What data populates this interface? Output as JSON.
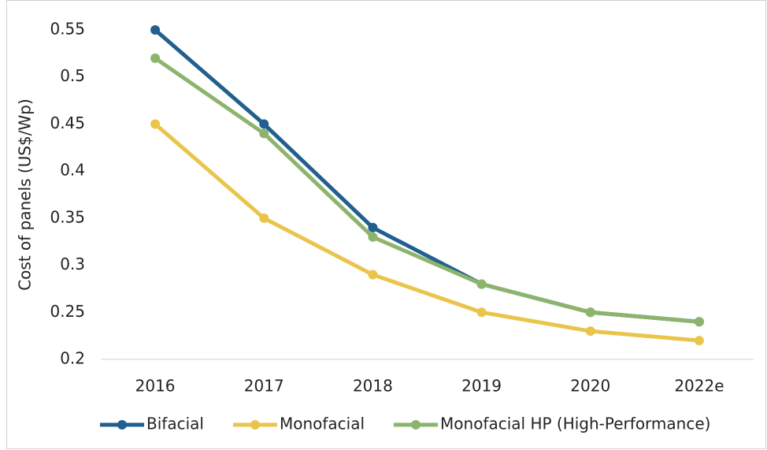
{
  "chart_data": {
    "type": "line",
    "y_label": "Cost of panels (US$/Wp)",
    "categories": [
      "2016",
      "2017",
      "2018",
      "2019",
      "2020",
      "2022e"
    ],
    "series": [
      {
        "name": "Bifacial",
        "color": "#215f8e",
        "values": [
          0.55,
          0.45,
          0.34,
          0.28,
          0.25,
          0.24
        ]
      },
      {
        "name": "Monofacial",
        "color": "#e9c54b",
        "values": [
          0.45,
          0.35,
          0.29,
          0.25,
          0.23,
          0.22
        ]
      },
      {
        "name": "Monofacial HP (High-Performance)",
        "color": "#8db46c",
        "values": [
          0.52,
          0.44,
          0.33,
          0.28,
          0.25,
          0.24
        ]
      }
    ],
    "ylim": [
      0.2,
      0.55
    ],
    "yticks": [
      0.2,
      0.25,
      0.3,
      0.35,
      0.4,
      0.45,
      0.5,
      0.55
    ],
    "grid": false,
    "legend": "bottom"
  }
}
